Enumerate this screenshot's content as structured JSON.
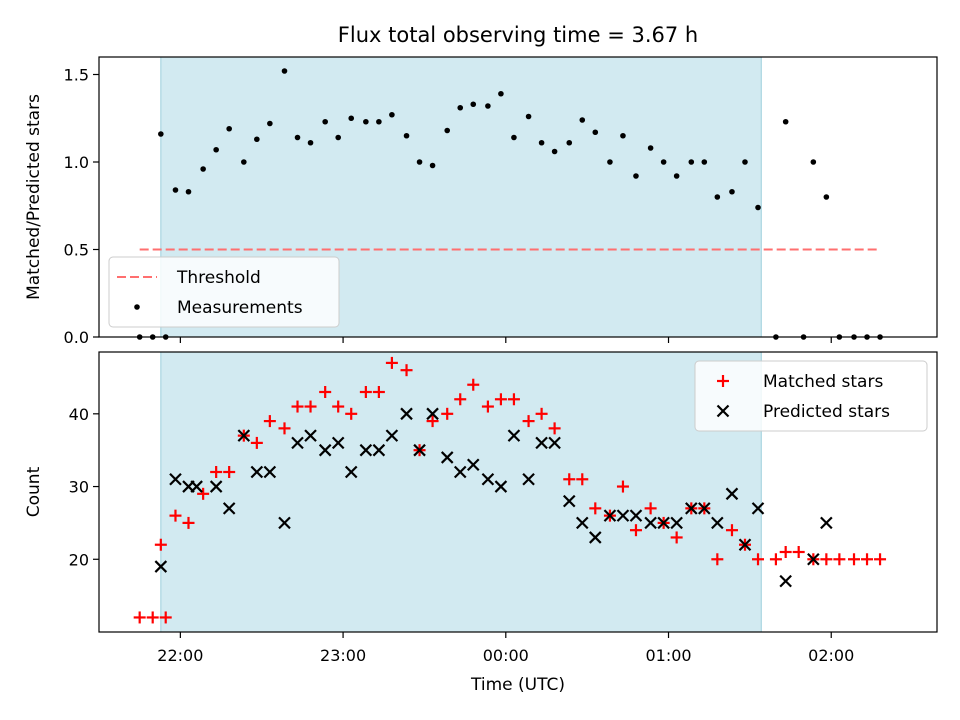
{
  "chart_data": {
    "title": "Flux total observing time = 3.67 h",
    "xlabel": "Time (UTC)",
    "x_unit": "hours UTC (values above 24 are after midnight)",
    "xlim": [
      21.5,
      26.65
    ],
    "xticks": [
      {
        "value": 22,
        "label": "22:00"
      },
      {
        "value": 23,
        "label": "23:00"
      },
      {
        "value": 24,
        "label": "00:00"
      },
      {
        "value": 25,
        "label": "01:00"
      },
      {
        "value": 26,
        "label": "02:00"
      }
    ],
    "observing_window": {
      "start": 21.88,
      "end": 25.57,
      "color": "#add8e6"
    },
    "panels": [
      {
        "type": "scatter",
        "ylabel": "Matched/Predicted stars",
        "ylim": [
          0,
          1.6
        ],
        "yticks": [
          "0.0",
          "0.5",
          "1.0",
          "1.5"
        ],
        "threshold": {
          "name": "Threshold",
          "value": 0.5,
          "x_range": [
            21.75,
            26.28
          ],
          "color": "#ff6f6f"
        },
        "legend_position": "lower-left",
        "series": [
          {
            "name": "Measurements",
            "color": "#000000",
            "x": [
              21.75,
              21.83,
              21.91,
              21.88,
              21.97,
              22.05,
              22.14,
              22.22,
              22.3,
              22.39,
              22.47,
              22.55,
              22.64,
              22.72,
              22.8,
              22.89,
              22.97,
              23.05,
              23.14,
              23.22,
              23.3,
              23.39,
              23.47,
              23.55,
              23.64,
              23.72,
              23.8,
              23.89,
              23.97,
              24.05,
              24.14,
              24.22,
              24.3,
              24.39,
              24.47,
              24.55,
              24.64,
              24.72,
              24.8,
              24.89,
              24.97,
              25.05,
              25.14,
              25.22,
              25.3,
              25.39,
              25.47,
              25.55,
              25.66,
              25.72,
              25.83,
              25.89,
              25.97,
              26.05,
              26.14,
              26.22,
              26.3
            ],
            "y": [
              0,
              0,
              0,
              1.16,
              0.84,
              0.83,
              0.96,
              1.07,
              1.19,
              1.0,
              1.13,
              1.22,
              1.52,
              1.14,
              1.11,
              1.23,
              1.14,
              1.25,
              1.23,
              1.23,
              1.27,
              1.15,
              1.0,
              0.98,
              1.18,
              1.31,
              1.33,
              1.32,
              1.39,
              1.14,
              1.26,
              1.11,
              1.06,
              1.11,
              1.24,
              1.17,
              1.0,
              1.15,
              0.92,
              1.08,
              1.0,
              0.92,
              1.0,
              1.0,
              0.8,
              0.83,
              1.0,
              0.74,
              0,
              1.23,
              0,
              1.0,
              0.8,
              0,
              0,
              0,
              0
            ]
          }
        ]
      },
      {
        "type": "scatter",
        "ylabel": "Count",
        "ylim": [
          10,
          48.5
        ],
        "yticks": [
          "20",
          "30",
          "40"
        ],
        "legend_position": "top-right",
        "series": [
          {
            "name": "Matched stars",
            "color": "#ff0000",
            "marker": "+",
            "x": [
              21.75,
              21.83,
              21.91,
              21.88,
              21.97,
              22.05,
              22.14,
              22.22,
              22.3,
              22.39,
              22.47,
              22.55,
              22.64,
              22.72,
              22.8,
              22.89,
              22.97,
              23.05,
              23.14,
              23.22,
              23.3,
              23.39,
              23.47,
              23.55,
              23.64,
              23.72,
              23.8,
              23.89,
              23.97,
              24.05,
              24.14,
              24.22,
              24.3,
              24.39,
              24.47,
              24.55,
              24.64,
              24.72,
              24.8,
              24.89,
              24.97,
              25.05,
              25.14,
              25.22,
              25.3,
              25.39,
              25.47,
              25.55,
              25.66,
              25.72,
              25.8,
              25.89,
              25.97,
              26.05,
              26.14,
              26.22,
              26.3
            ],
            "y": [
              12,
              12,
              12,
              22,
              26,
              25,
              29,
              32,
              32,
              37,
              36,
              39,
              38,
              41,
              41,
              43,
              41,
              40,
              43,
              43,
              47,
              46,
              35,
              39,
              40,
              42,
              44,
              41,
              42,
              42,
              39,
              40,
              38,
              31,
              31,
              27,
              26,
              30,
              24,
              27,
              25,
              23,
              27,
              27,
              20,
              24,
              22,
              20,
              20,
              21,
              21,
              20,
              20,
              20,
              20,
              20,
              20
            ]
          },
          {
            "name": "Predicted stars",
            "color": "#000000",
            "marker": "x",
            "x": [
              21.88,
              21.97,
              22.05,
              22.1,
              22.22,
              22.3,
              22.39,
              22.47,
              22.55,
              22.64,
              22.72,
              22.8,
              22.89,
              22.97,
              23.05,
              23.14,
              23.22,
              23.3,
              23.39,
              23.47,
              23.55,
              23.64,
              23.72,
              23.8,
              23.89,
              23.97,
              24.05,
              24.14,
              24.22,
              24.3,
              24.39,
              24.47,
              24.55,
              24.64,
              24.72,
              24.8,
              24.89,
              24.97,
              25.05,
              25.14,
              25.22,
              25.3,
              25.39,
              25.47,
              25.55,
              25.72,
              25.89,
              25.97
            ],
            "y": [
              19,
              31,
              30,
              30,
              30,
              27,
              37,
              32,
              32,
              25,
              36,
              37,
              35,
              36,
              32,
              35,
              35,
              37,
              40,
              35,
              40,
              34,
              32,
              33,
              31,
              30,
              37,
              31,
              36,
              36,
              28,
              25,
              23,
              26,
              26,
              26,
              25,
              25,
              25,
              27,
              27,
              25,
              29,
              22,
              27,
              17,
              20,
              25
            ]
          }
        ]
      }
    ]
  }
}
